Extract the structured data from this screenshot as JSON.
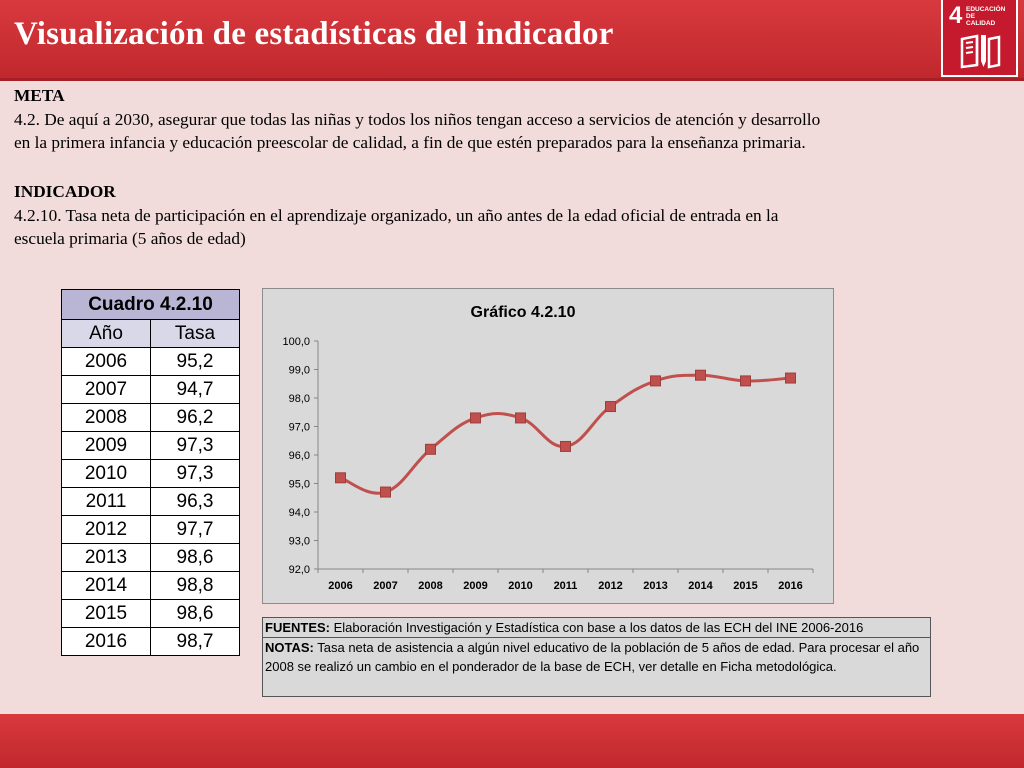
{
  "header": {
    "title": "Visualización de estadísticas del indicador"
  },
  "sdg": {
    "number": "4",
    "label_line1": "EDUCACIÓN DE",
    "label_line2": "CALIDAD",
    "color": "#c5192d"
  },
  "meta": {
    "heading": "META",
    "line1": "4.2. De aquí a 2030, asegurar que todas las niñas y todos los niños tengan acceso a servicios de atención y desarrollo",
    "line2": "en la primera infancia y educación preescolar de calidad, a fin de que estén preparados para la enseñanza primaria."
  },
  "indicador": {
    "heading": "INDICADOR",
    "line1": "4.2.10. Tasa neta de participación en el aprendizaje organizado, un año antes de la edad oficial de entrada en la",
    "line2": "escuela primaria (5 años de edad)"
  },
  "cuadro": {
    "title": "Cuadro 4.2.10",
    "col_year": "Año",
    "col_rate": "Tasa",
    "rows": [
      {
        "year": "2006",
        "rate": "95,2"
      },
      {
        "year": "2007",
        "rate": "94,7"
      },
      {
        "year": "2008",
        "rate": "96,2"
      },
      {
        "year": "2009",
        "rate": "97,3"
      },
      {
        "year": "2010",
        "rate": "97,3"
      },
      {
        "year": "2011",
        "rate": "96,3"
      },
      {
        "year": "2012",
        "rate": "97,7"
      },
      {
        "year": "2013",
        "rate": "98,6"
      },
      {
        "year": "2014",
        "rate": "98,8"
      },
      {
        "year": "2015",
        "rate": "98,6"
      },
      {
        "year": "2016",
        "rate": "98,7"
      }
    ]
  },
  "chart_data": {
    "type": "line",
    "title": "Gráfico 4.2.10",
    "categories": [
      "2006",
      "2007",
      "2008",
      "2009",
      "2010",
      "2011",
      "2012",
      "2013",
      "2014",
      "2015",
      "2016"
    ],
    "values": [
      95.2,
      94.7,
      96.2,
      97.3,
      97.3,
      96.3,
      97.7,
      98.6,
      98.8,
      98.6,
      98.7
    ],
    "ylim": [
      92,
      100
    ],
    "yticks": [
      "92,0",
      "93,0",
      "94,0",
      "95,0",
      "96,0",
      "97,0",
      "98,0",
      "99,0",
      "100,0"
    ],
    "xlabel": "",
    "ylabel": "",
    "grid": false,
    "line_color": "#c0504d",
    "marker": "square"
  },
  "notes": {
    "fuentes_label": "FUENTES:",
    "fuentes_text": " Elaboración Investigación y Estadística con base a los datos de las ECH del INE 2006-2016",
    "notas_label": "NOTAS:",
    "notas_text": " Tasa neta de asistencia a algún nivel educativo de la población de 5 años de edad. Para procesar el año 2008 se realizó un cambio en el ponderador de la base de ECH, ver detalle en Ficha metodológica."
  }
}
